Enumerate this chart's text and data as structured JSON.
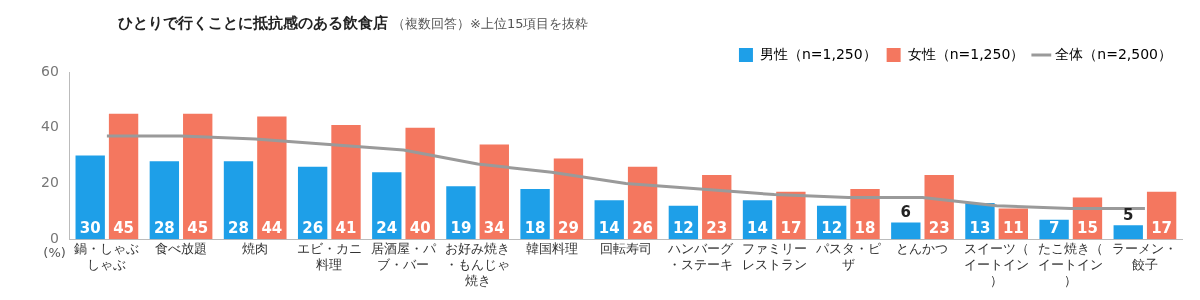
{
  "chart_data": {
    "type": "bar",
    "title": "ひとりで行くことに抵抗感のある飲食店",
    "subtitle": "（複数回答）※上位15項目を抜粋",
    "ylabel": "(%)",
    "categories": [
      "鍋・しゃぶしゃぶ",
      "食べ放題",
      "焼肉",
      "エビ・カニ料理",
      "居酒屋・パブ・バー",
      "お好み焼き・もんじゃ焼き",
      "韓国料理",
      "回転寿司",
      "ハンバーグ・ステーキ",
      "ファミリーレストラン",
      "パスタ・ピザ",
      "とんかつ",
      "スイーツ（イートイン）",
      "たこ焼き（イートイン）",
      "ラーメン・餃子"
    ],
    "series": [
      {
        "name": "男性（n=1,250）",
        "color": "#1e9fe8",
        "values": [
          30,
          28,
          28,
          26,
          24,
          19,
          18,
          14,
          12,
          14,
          12,
          6,
          13,
          7,
          5
        ],
        "data_labels": true
      },
      {
        "name": "女性（n=1,250）",
        "color": "#f4775f",
        "values": [
          45,
          45,
          44,
          41,
          40,
          34,
          29,
          26,
          23,
          17,
          18,
          23,
          11,
          15,
          17
        ],
        "data_labels": true
      },
      {
        "name": "全体（n=2,500）",
        "type": "line",
        "color": "#9a9a9a",
        "values": [
          37,
          37,
          36,
          34,
          32,
          27,
          24,
          20,
          18,
          16,
          15,
          15,
          12,
          11,
          11
        ]
      }
    ],
    "ylim": [
      0,
      60
    ],
    "yticks": [
      0,
      20,
      40,
      60
    ],
    "grid": false,
    "legend": "top right",
    "marker": "none",
    "line_style": "solid"
  }
}
